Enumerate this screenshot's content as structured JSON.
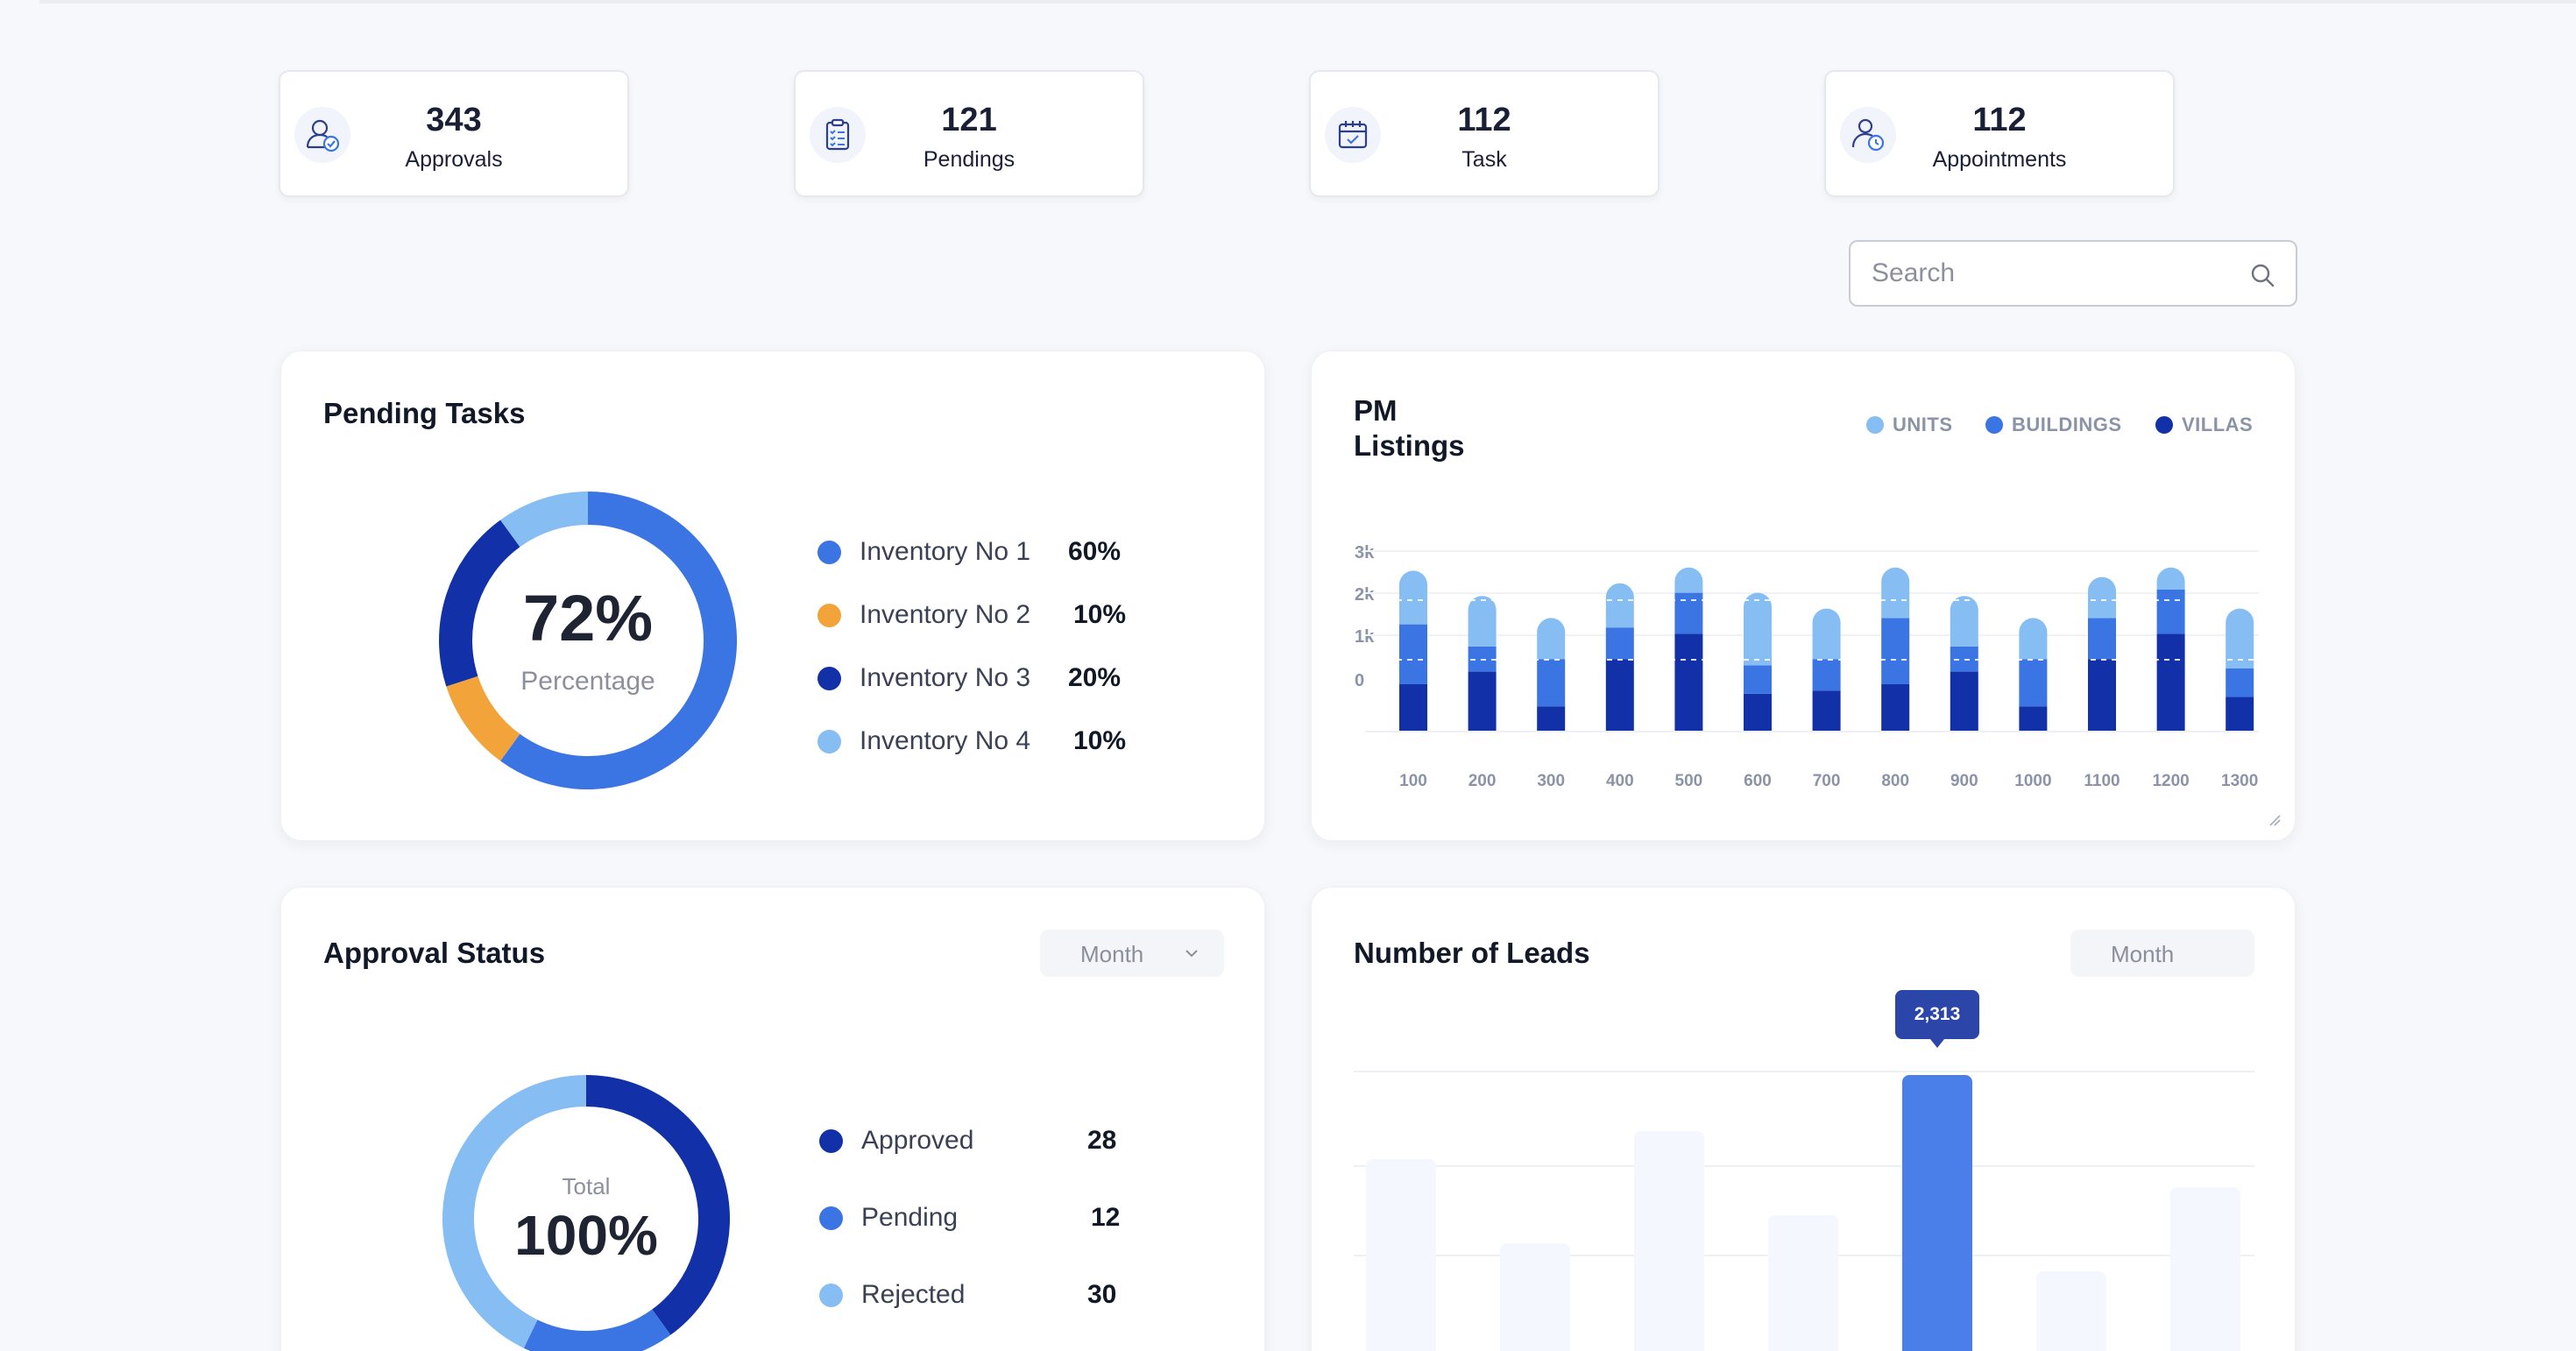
{
  "stats": [
    {
      "value": "343",
      "label": "Approvals",
      "icon": "user-check-icon"
    },
    {
      "value": "121",
      "label": "Pendings",
      "icon": "clipboard-list-icon"
    },
    {
      "value": "112",
      "label": "Task",
      "icon": "calendar-check-icon"
    },
    {
      "value": "112",
      "label": "Appointments",
      "icon": "user-clock-icon"
    }
  ],
  "search": {
    "placeholder": "Search"
  },
  "pending_tasks": {
    "title": "Pending Tasks",
    "center_value": "72%",
    "center_label": "Percentage",
    "items": [
      {
        "label": "Inventory No 1",
        "value": "60%",
        "color": "#3b74e3",
        "share": 60
      },
      {
        "label": "Inventory No 2",
        "value": "10%",
        "color": "#f2a43a",
        "share": 10
      },
      {
        "label": "Inventory No 3",
        "value": "20%",
        "color": "#1231a8",
        "share": 20
      },
      {
        "label": "Inventory No 4",
        "value": "10%",
        "color": "#86bdf3",
        "share": 10
      }
    ]
  },
  "pm_listings": {
    "title_line1": "PM",
    "title_line2": "Listings",
    "legend": [
      {
        "label": "UNITS",
        "color": "#86bdf3"
      },
      {
        "label": "BUILDINGS",
        "color": "#3b74e3"
      },
      {
        "label": "VILLAS",
        "color": "#1231a8"
      }
    ]
  },
  "approval_status": {
    "title": "Approval Status",
    "filter": "Month",
    "center_label": "Total",
    "center_value": "100%",
    "items": [
      {
        "label": "Approved",
        "value": "28",
        "color": "#1231a8"
      },
      {
        "label": "Pending",
        "value": "12",
        "color": "#3b74e3"
      },
      {
        "label": "Rejected",
        "value": "30",
        "color": "#86bdf3"
      }
    ]
  },
  "leads": {
    "title": "Number of Leads",
    "filter": "Month",
    "tooltip": "2,313"
  },
  "chart_data": [
    {
      "type": "bar",
      "title": "PM Listings",
      "stacked": true,
      "categories": [
        "100",
        "200",
        "300",
        "400",
        "500",
        "600",
        "700",
        "800",
        "900",
        "1000",
        "1100",
        "1200",
        "1300"
      ],
      "yticks": [
        "0",
        "1k",
        "2k",
        "3k"
      ],
      "ylim": [
        0,
        3000
      ],
      "series": [
        {
          "name": "VILLAS",
          "values": [
            750,
            950,
            400,
            1150,
            1550,
            600,
            650,
            750,
            950,
            400,
            1150,
            1550,
            550
          ]
        },
        {
          "name": "BUILDINGS",
          "values": [
            950,
            400,
            750,
            500,
            650,
            450,
            500,
            1050,
            400,
            750,
            650,
            700,
            450
          ]
        },
        {
          "name": "UNITS",
          "values": [
            850,
            800,
            650,
            700,
            400,
            1150,
            800,
            800,
            800,
            650,
            650,
            350,
            950
          ]
        }
      ],
      "legend": "top-right"
    },
    {
      "type": "bar",
      "title": "Number of Leads",
      "values": [
        0.55,
        0.31,
        0.63,
        0.39,
        0.79,
        0.23,
        0.47
      ],
      "highlight_index": 4,
      "highlight_label": "2,313"
    }
  ]
}
